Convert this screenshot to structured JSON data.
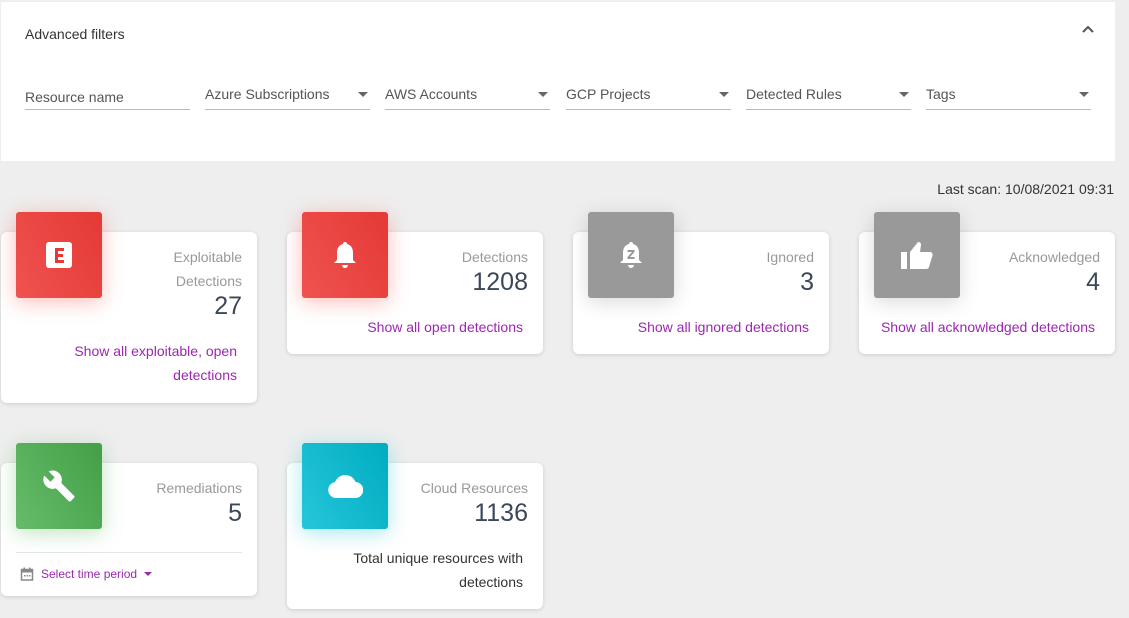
{
  "filters": {
    "title": "Advanced filters",
    "collapse_icon": "chevron-up-icon",
    "fields": [
      {
        "placeholder": "Resource name",
        "type": "text"
      },
      {
        "placeholder": "Azure Subscriptions",
        "type": "select"
      },
      {
        "placeholder": "AWS Accounts",
        "type": "select"
      },
      {
        "placeholder": "GCP Projects",
        "type": "select"
      },
      {
        "placeholder": "Detected Rules",
        "type": "select"
      },
      {
        "placeholder": "Tags",
        "type": "select"
      }
    ]
  },
  "last_scan": "Last scan: 10/08/2021 09:31",
  "cards": [
    {
      "label": "Exploitable Detections",
      "value": "27",
      "link": "Show all exploitable, open detections",
      "icon": "exploit-e-icon",
      "color": "#e53935"
    },
    {
      "label": "Detections",
      "value": "1208",
      "link": "Show all open detections",
      "icon": "bell-icon",
      "color": "#e53935"
    },
    {
      "label": "Ignored",
      "value": "3",
      "link": "Show all ignored detections",
      "icon": "bell-snooze-icon",
      "color": "#999999"
    },
    {
      "label": "Acknowledged",
      "value": "4",
      "link": "Show all acknowledged detections",
      "icon": "thumbs-up-icon",
      "color": "#999999"
    },
    {
      "label": "Remediations",
      "value": "5",
      "link": "Select time period",
      "icon": "wrench-icon",
      "color": "#43a047"
    },
    {
      "label": "Cloud Resources",
      "value": "1136",
      "desc": "Total unique resources with detections",
      "icon": "cloud-icon",
      "color": "#00acc1"
    }
  ]
}
